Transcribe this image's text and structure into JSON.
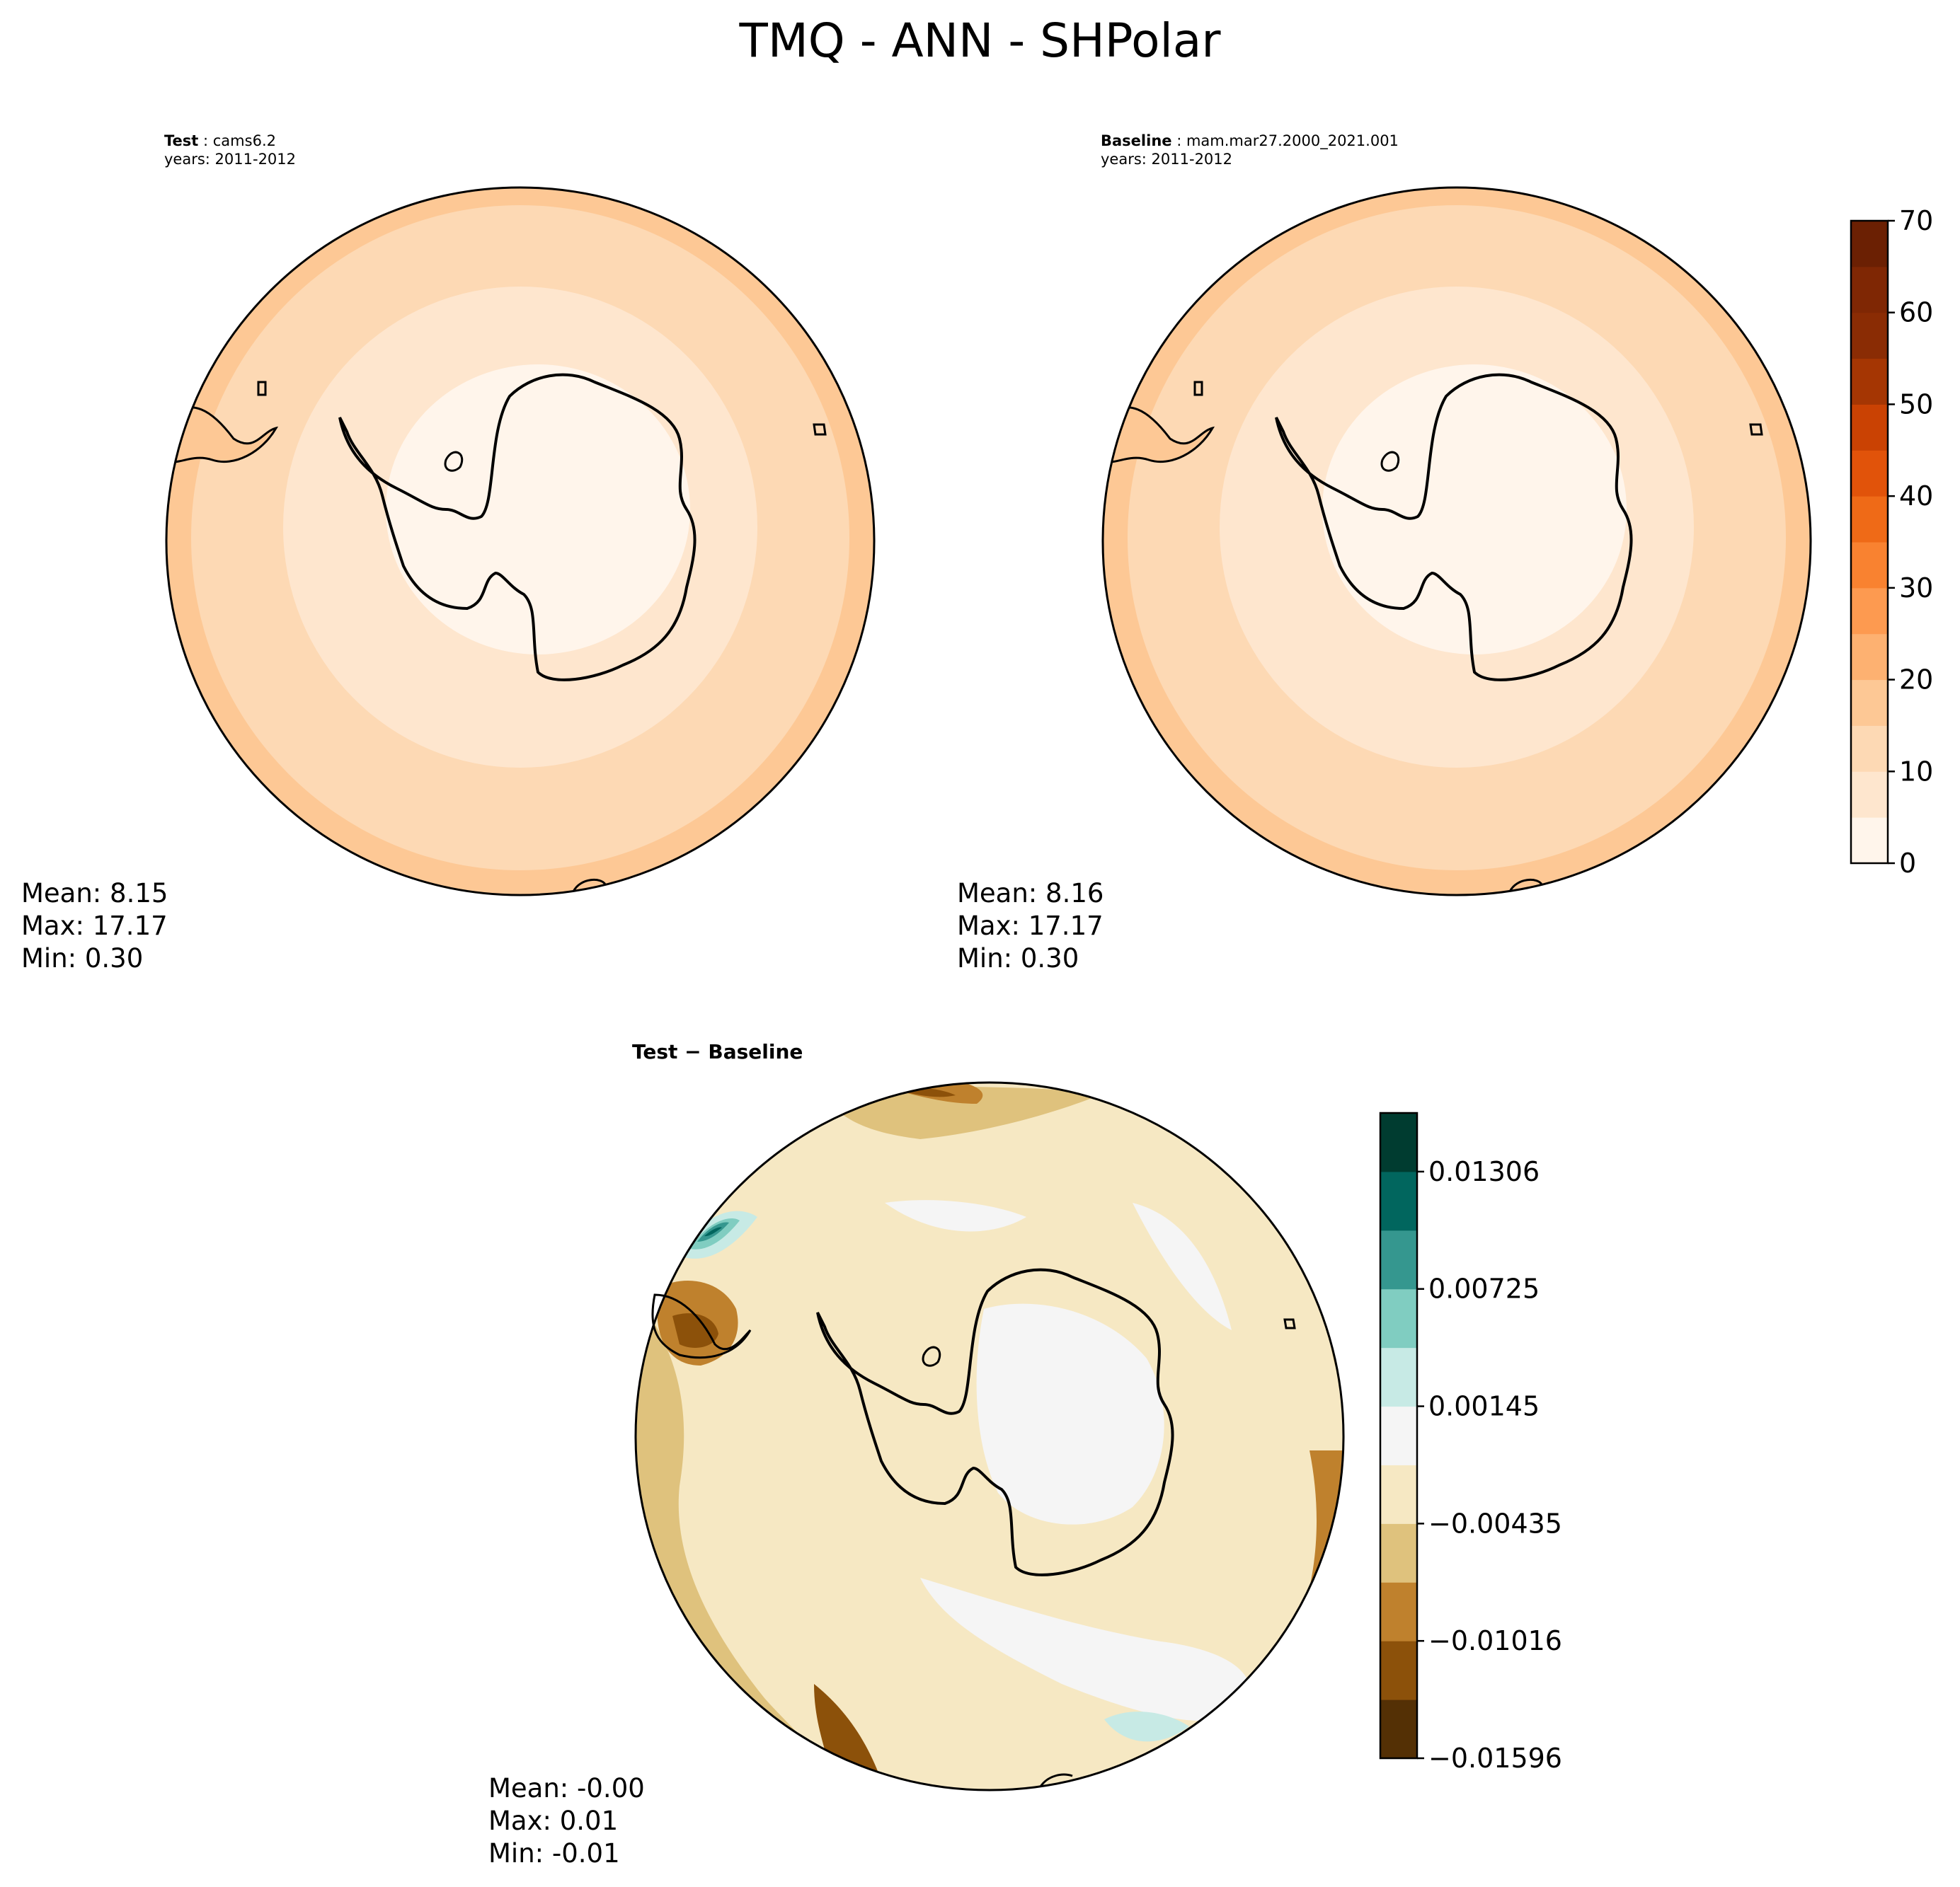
{
  "title": "TMQ - ANN - SHPolar",
  "panels": {
    "test": {
      "label": "Test",
      "case": "cams6.2",
      "years": "years: 2011-2012",
      "stats": {
        "mean": "Mean:  8.15",
        "max": "Max: 17.17",
        "min": "Min:  0.30"
      }
    },
    "baseline": {
      "label": "Baseline",
      "case": "mam.mar27.2000_2021.001",
      "years": "years: 2011-2012",
      "stats": {
        "mean": "Mean:  8.16",
        "max": "Max: 17.17",
        "min": "Min:  0.30"
      }
    },
    "diff": {
      "title": "Test − Baseline",
      "stats": {
        "mean": "Mean: -0.00",
        "max": "Max:  0.01",
        "min": "Min: -0.01"
      }
    }
  },
  "colorbars": {
    "main": {
      "ticks": [
        "0",
        "10",
        "20",
        "30",
        "40",
        "50",
        "60",
        "70"
      ],
      "colors": [
        "#fff5eb",
        "#fee6ce",
        "#fdd9b4",
        "#fdc895",
        "#fdb171",
        "#fd9a50",
        "#f98230",
        "#ef6a17",
        "#e1530a",
        "#ca4203",
        "#a53603",
        "#8a2c04",
        "#7f2704",
        "#6b2003"
      ]
    },
    "diff": {
      "ticks": [
        "0.01306",
        "0.00725",
        "0.00145",
        "−0.00435",
        "−0.01016",
        "−0.01596"
      ],
      "colors": [
        "#543005",
        "#8c510a",
        "#bf812d",
        "#dfc27d",
        "#f6e8c3",
        "#f5f5f5",
        "#c7eae5",
        "#80cdc1",
        "#35978f",
        "#01665e",
        "#003c30"
      ]
    }
  }
}
